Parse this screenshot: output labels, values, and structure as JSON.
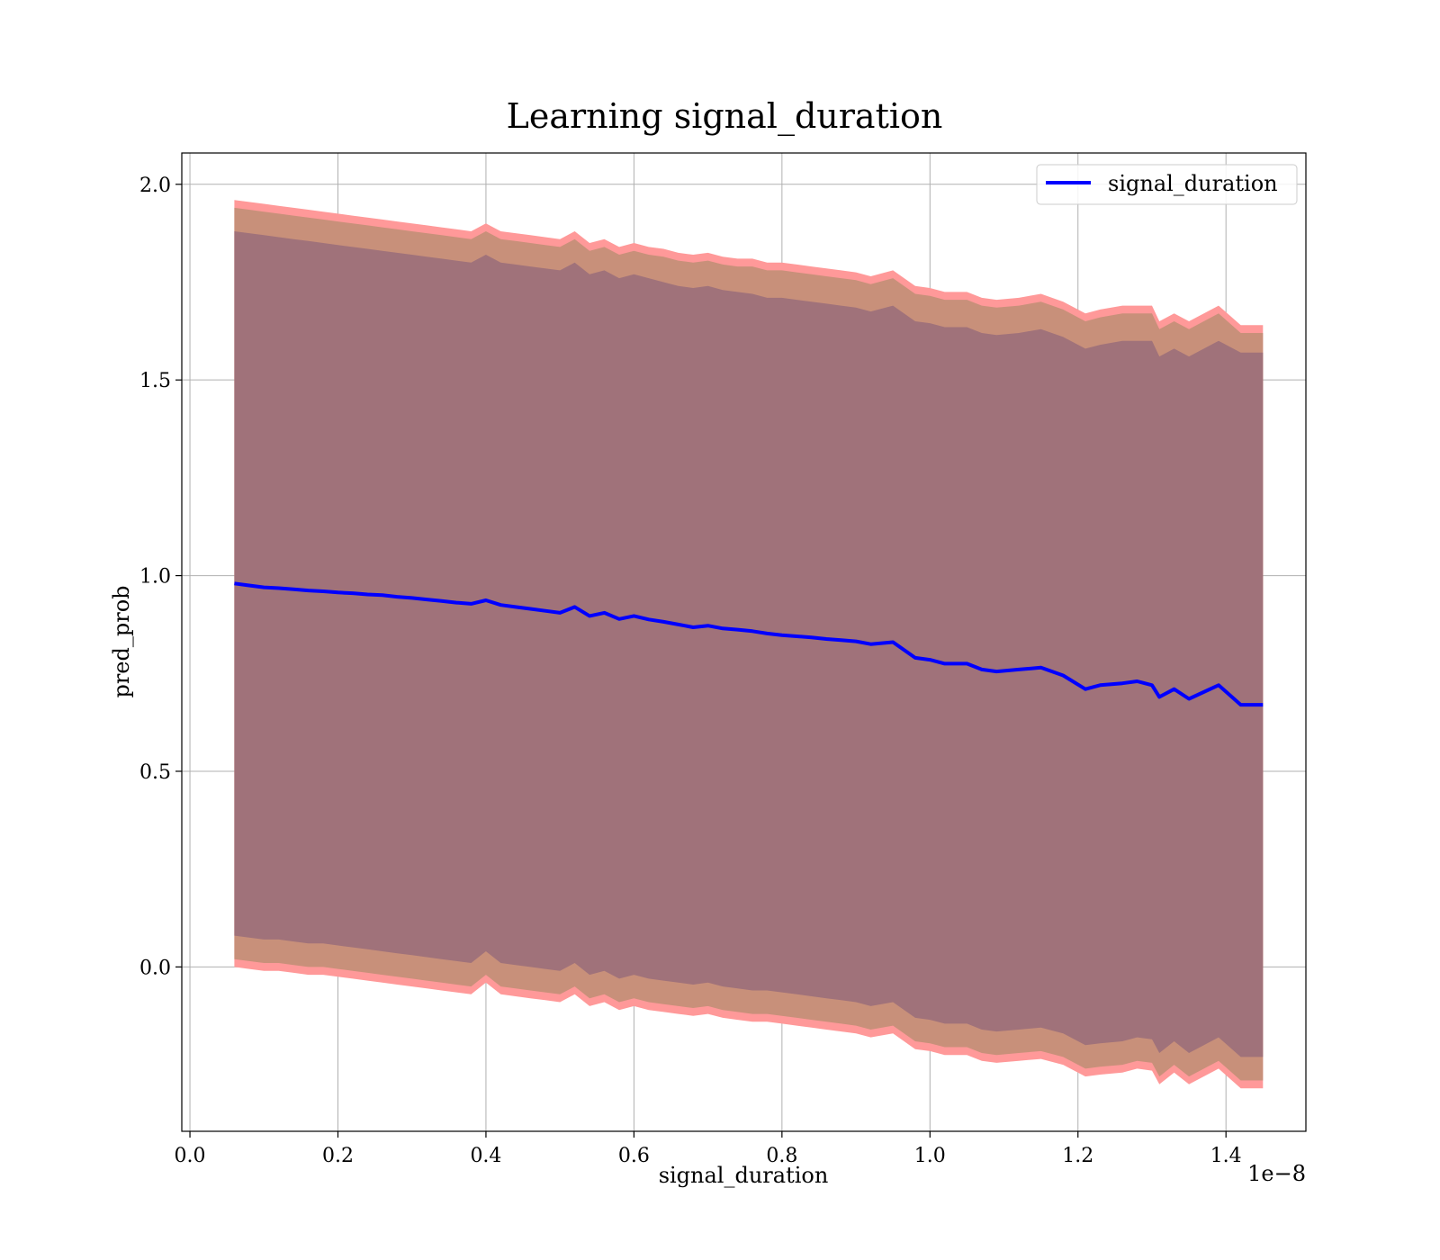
{
  "chart_data": {
    "type": "line",
    "title": "Learning signal_duration",
    "xlabel": "signal_duration",
    "ylabel": "pred_prob",
    "x_offset_label": "1e−8",
    "xlim": [
      -0.011,
      1.508
    ],
    "ylim": [
      -0.42,
      2.08
    ],
    "x_ticks": [
      0.0,
      0.2,
      0.4,
      0.6,
      0.8,
      1.0,
      1.2,
      1.4
    ],
    "x_tick_labels": [
      "0.0",
      "0.2",
      "0.4",
      "0.6",
      "0.8",
      "1.0",
      "1.2",
      "1.4"
    ],
    "y_ticks": [
      0.0,
      0.5,
      1.0,
      1.5,
      2.0
    ],
    "y_tick_labels": [
      "0.0",
      "0.5",
      "1.0",
      "1.5",
      "2.0"
    ],
    "grid": true,
    "legend": {
      "position": "upper-right",
      "entries": [
        "signal_duration"
      ]
    },
    "colors": {
      "line": "#0000ff",
      "band_outer": "#ff9999",
      "band_middle": "#c8907a",
      "band_inner": "#a0727a",
      "grid": "#b0b0b0"
    },
    "series": [
      {
        "name": "signal_duration",
        "x": [
          0.06,
          0.08,
          0.1,
          0.12,
          0.14,
          0.16,
          0.18,
          0.2,
          0.22,
          0.24,
          0.26,
          0.28,
          0.3,
          0.32,
          0.34,
          0.36,
          0.38,
          0.4,
          0.42,
          0.44,
          0.46,
          0.48,
          0.5,
          0.52,
          0.54,
          0.56,
          0.58,
          0.6,
          0.62,
          0.64,
          0.66,
          0.68,
          0.7,
          0.72,
          0.74,
          0.76,
          0.78,
          0.8,
          0.82,
          0.84,
          0.86,
          0.88,
          0.9,
          0.92,
          0.95,
          0.98,
          1.0,
          1.02,
          1.05,
          1.07,
          1.09,
          1.12,
          1.15,
          1.18,
          1.21,
          1.23,
          1.26,
          1.28,
          1.3,
          1.31,
          1.33,
          1.35,
          1.39,
          1.42,
          1.45
        ],
        "values": [
          0.98,
          0.975,
          0.97,
          0.968,
          0.965,
          0.962,
          0.96,
          0.957,
          0.955,
          0.952,
          0.95,
          0.946,
          0.943,
          0.939,
          0.935,
          0.931,
          0.928,
          0.937,
          0.925,
          0.92,
          0.915,
          0.91,
          0.905,
          0.92,
          0.897,
          0.905,
          0.889,
          0.897,
          0.888,
          0.882,
          0.875,
          0.868,
          0.872,
          0.865,
          0.862,
          0.858,
          0.852,
          0.848,
          0.845,
          0.842,
          0.838,
          0.835,
          0.832,
          0.825,
          0.83,
          0.79,
          0.785,
          0.775,
          0.775,
          0.76,
          0.755,
          0.76,
          0.765,
          0.745,
          0.71,
          0.72,
          0.725,
          0.73,
          0.72,
          0.69,
          0.71,
          0.685,
          0.72,
          0.67,
          0.67
        ],
        "band_outer": {
          "upper": [
            1.96,
            1.955,
            1.95,
            1.945,
            1.94,
            1.935,
            1.93,
            1.925,
            1.92,
            1.915,
            1.91,
            1.905,
            1.9,
            1.895,
            1.89,
            1.885,
            1.88,
            1.9,
            1.88,
            1.875,
            1.87,
            1.865,
            1.86,
            1.88,
            1.85,
            1.86,
            1.84,
            1.85,
            1.84,
            1.835,
            1.825,
            1.82,
            1.825,
            1.815,
            1.81,
            1.81,
            1.8,
            1.8,
            1.795,
            1.79,
            1.785,
            1.78,
            1.775,
            1.765,
            1.78,
            1.74,
            1.735,
            1.725,
            1.725,
            1.71,
            1.705,
            1.71,
            1.72,
            1.7,
            1.67,
            1.68,
            1.69,
            1.69,
            1.69,
            1.65,
            1.67,
            1.65,
            1.69,
            1.64,
            1.64
          ],
          "lower": [
            0.0,
            -0.005,
            -0.01,
            -0.01,
            -0.015,
            -0.02,
            -0.02,
            -0.025,
            -0.03,
            -0.035,
            -0.04,
            -0.045,
            -0.05,
            -0.055,
            -0.06,
            -0.065,
            -0.07,
            -0.04,
            -0.07,
            -0.075,
            -0.08,
            -0.085,
            -0.09,
            -0.07,
            -0.1,
            -0.09,
            -0.11,
            -0.1,
            -0.11,
            -0.115,
            -0.12,
            -0.125,
            -0.12,
            -0.13,
            -0.135,
            -0.14,
            -0.14,
            -0.145,
            -0.15,
            -0.155,
            -0.16,
            -0.165,
            -0.17,
            -0.18,
            -0.17,
            -0.21,
            -0.215,
            -0.225,
            -0.225,
            -0.24,
            -0.245,
            -0.24,
            -0.235,
            -0.25,
            -0.28,
            -0.275,
            -0.27,
            -0.26,
            -0.265,
            -0.3,
            -0.27,
            -0.3,
            -0.26,
            -0.31,
            -0.31
          ]
        },
        "band_middle": {
          "upper": [
            1.94,
            1.935,
            1.93,
            1.925,
            1.92,
            1.915,
            1.91,
            1.905,
            1.9,
            1.895,
            1.89,
            1.885,
            1.88,
            1.875,
            1.87,
            1.865,
            1.86,
            1.88,
            1.86,
            1.855,
            1.85,
            1.845,
            1.84,
            1.86,
            1.83,
            1.84,
            1.82,
            1.83,
            1.82,
            1.815,
            1.805,
            1.8,
            1.805,
            1.795,
            1.79,
            1.79,
            1.78,
            1.78,
            1.775,
            1.77,
            1.765,
            1.76,
            1.755,
            1.745,
            1.76,
            1.72,
            1.715,
            1.705,
            1.705,
            1.69,
            1.685,
            1.69,
            1.7,
            1.68,
            1.65,
            1.66,
            1.67,
            1.67,
            1.67,
            1.63,
            1.65,
            1.63,
            1.67,
            1.62,
            1.62
          ],
          "lower": [
            0.02,
            0.015,
            0.01,
            0.01,
            0.005,
            0.0,
            0.0,
            -0.005,
            -0.01,
            -0.015,
            -0.02,
            -0.025,
            -0.03,
            -0.035,
            -0.04,
            -0.045,
            -0.05,
            -0.02,
            -0.05,
            -0.055,
            -0.06,
            -0.065,
            -0.07,
            -0.05,
            -0.08,
            -0.07,
            -0.09,
            -0.08,
            -0.09,
            -0.095,
            -0.1,
            -0.105,
            -0.1,
            -0.11,
            -0.115,
            -0.12,
            -0.12,
            -0.125,
            -0.13,
            -0.135,
            -0.14,
            -0.145,
            -0.15,
            -0.16,
            -0.15,
            -0.19,
            -0.195,
            -0.205,
            -0.205,
            -0.22,
            -0.225,
            -0.22,
            -0.215,
            -0.23,
            -0.26,
            -0.255,
            -0.25,
            -0.24,
            -0.245,
            -0.28,
            -0.25,
            -0.28,
            -0.24,
            -0.29,
            -0.29
          ]
        },
        "band_inner": {
          "upper": [
            1.88,
            1.875,
            1.87,
            1.865,
            1.86,
            1.855,
            1.85,
            1.845,
            1.84,
            1.835,
            1.83,
            1.825,
            1.82,
            1.815,
            1.81,
            1.805,
            1.8,
            1.82,
            1.8,
            1.795,
            1.79,
            1.785,
            1.78,
            1.8,
            1.77,
            1.78,
            1.76,
            1.77,
            1.76,
            1.75,
            1.74,
            1.735,
            1.74,
            1.73,
            1.725,
            1.72,
            1.71,
            1.71,
            1.705,
            1.7,
            1.695,
            1.69,
            1.685,
            1.675,
            1.69,
            1.65,
            1.645,
            1.635,
            1.635,
            1.62,
            1.615,
            1.62,
            1.63,
            1.61,
            1.58,
            1.59,
            1.6,
            1.6,
            1.6,
            1.56,
            1.58,
            1.56,
            1.6,
            1.57,
            1.57
          ],
          "lower": [
            0.08,
            0.075,
            0.07,
            0.07,
            0.065,
            0.06,
            0.06,
            0.055,
            0.05,
            0.045,
            0.04,
            0.035,
            0.03,
            0.025,
            0.02,
            0.015,
            0.01,
            0.04,
            0.01,
            0.005,
            0.0,
            -0.005,
            -0.01,
            0.01,
            -0.02,
            -0.01,
            -0.03,
            -0.02,
            -0.03,
            -0.035,
            -0.04,
            -0.045,
            -0.04,
            -0.05,
            -0.055,
            -0.06,
            -0.06,
            -0.065,
            -0.07,
            -0.075,
            -0.08,
            -0.085,
            -0.09,
            -0.1,
            -0.09,
            -0.13,
            -0.135,
            -0.145,
            -0.145,
            -0.16,
            -0.165,
            -0.16,
            -0.155,
            -0.17,
            -0.2,
            -0.195,
            -0.19,
            -0.18,
            -0.185,
            -0.22,
            -0.19,
            -0.22,
            -0.18,
            -0.23,
            -0.23
          ]
        }
      }
    ]
  }
}
